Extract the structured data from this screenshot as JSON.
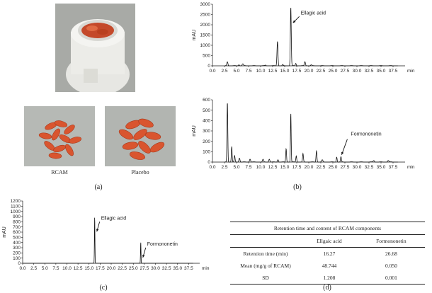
{
  "panels": {
    "a_label": "(a)",
    "b_label": "(b)",
    "c_label": "(c)",
    "d_label": "(d)"
  },
  "photos": {
    "rcam_caption": "RCAM",
    "placebo_caption": "Placebo"
  },
  "colors": {
    "line": "#111111",
    "tablet": "#d9552f",
    "photo_bg": "#b5b8b4",
    "bottle": "#f2f2ee"
  },
  "table": {
    "title": "Retention time and content of RCAM components",
    "columns": [
      "",
      "Ellgaic acid",
      "Formononetin"
    ],
    "rows": [
      {
        "label": "Retention time (min)",
        "ellagic": "16.27",
        "formononetin": "26.68"
      },
      {
        "label": "Mean (mg/g of RCAM)",
        "ellagic": "48.744",
        "formononetin": "0.050"
      },
      {
        "label": "SD",
        "ellagic": "1.208",
        "formononetin": "0.001"
      }
    ]
  },
  "chart_data": [
    {
      "id": "b_top",
      "type": "line",
      "title": "",
      "xlabel": "min",
      "ylabel": "mAU",
      "xlim": [
        0,
        40
      ],
      "ylim": [
        0,
        3000
      ],
      "xticks": [
        "0.0",
        "2.5",
        "5.0",
        "7.5",
        "10.0",
        "12.5",
        "15.0",
        "17.5",
        "20.0",
        "22.5",
        "25.0",
        "27.5",
        "30.0",
        "32.5",
        "35.0",
        "37.5"
      ],
      "yticks": [
        "0",
        "500",
        "1000",
        "1500",
        "2000",
        "2500",
        "3000"
      ],
      "peaks": [
        {
          "x": 3.1,
          "y": 200,
          "w": 0.25
        },
        {
          "x": 5.5,
          "y": 60,
          "w": 0.3
        },
        {
          "x": 6.3,
          "y": 90,
          "w": 0.3
        },
        {
          "x": 11.0,
          "y": 30,
          "w": 0.3
        },
        {
          "x": 13.5,
          "y": 1200,
          "w": 0.22
        },
        {
          "x": 14.6,
          "y": 60,
          "w": 0.2
        },
        {
          "x": 16.27,
          "y": 2850,
          "w": 0.2
        },
        {
          "x": 17.3,
          "y": 120,
          "w": 0.2
        },
        {
          "x": 19.2,
          "y": 200,
          "w": 0.25
        },
        {
          "x": 20.5,
          "y": 40,
          "w": 0.3
        }
      ],
      "annotations": [
        {
          "text": "Ellagic acid",
          "x": 16.27,
          "y": 2850
        }
      ]
    },
    {
      "id": "b_bottom",
      "type": "line",
      "title": "",
      "xlabel": "min",
      "ylabel": "mAU",
      "xlim": [
        0,
        40
      ],
      "ylim": [
        0,
        600
      ],
      "xticks": [
        "0.0",
        "2.5",
        "5.0",
        "7.5",
        "10.0",
        "12.5",
        "15.0",
        "17.5",
        "20.0",
        "22.5",
        "25.0",
        "27.5",
        "30.0",
        "32.5",
        "35.0",
        "37.5"
      ],
      "yticks": [
        "0",
        "100",
        "200",
        "300",
        "400",
        "500",
        "600"
      ],
      "peaks": [
        {
          "x": 3.1,
          "y": 580,
          "w": 0.18
        },
        {
          "x": 4.0,
          "y": 150,
          "w": 0.18
        },
        {
          "x": 4.6,
          "y": 60,
          "w": 0.2
        },
        {
          "x": 5.6,
          "y": 40,
          "w": 0.25
        },
        {
          "x": 7.8,
          "y": 30,
          "w": 0.25
        },
        {
          "x": 10.5,
          "y": 25,
          "w": 0.25
        },
        {
          "x": 11.8,
          "y": 30,
          "w": 0.25
        },
        {
          "x": 13.6,
          "y": 25,
          "w": 0.25
        },
        {
          "x": 15.3,
          "y": 130,
          "w": 0.18
        },
        {
          "x": 16.27,
          "y": 470,
          "w": 0.16
        },
        {
          "x": 17.4,
          "y": 60,
          "w": 0.2
        },
        {
          "x": 18.8,
          "y": 80,
          "w": 0.2
        },
        {
          "x": 21.6,
          "y": 110,
          "w": 0.2
        },
        {
          "x": 22.8,
          "y": 20,
          "w": 0.3
        },
        {
          "x": 25.8,
          "y": 50,
          "w": 0.2
        },
        {
          "x": 26.68,
          "y": 50,
          "w": 0.2
        },
        {
          "x": 33.5,
          "y": 15,
          "w": 0.3
        },
        {
          "x": 36.5,
          "y": 15,
          "w": 0.3
        }
      ],
      "annotations": [
        {
          "text": "Formononetin",
          "x": 26.68,
          "y": 50
        }
      ]
    },
    {
      "id": "c",
      "type": "line",
      "title": "",
      "xlabel": "min",
      "ylabel": "mAU",
      "xlim": [
        0,
        40
      ],
      "ylim": [
        0,
        1200
      ],
      "xticks": [
        "0.0",
        "2.5",
        "5.0",
        "7.5",
        "10.0",
        "12.5",
        "15.0",
        "17.5",
        "20.0",
        "22.5",
        "25.0",
        "27.5",
        "30.0",
        "32.5",
        "35.0",
        "37.5"
      ],
      "yticks": [
        "0",
        "100",
        "200",
        "300",
        "400",
        "500",
        "600",
        "700",
        "800",
        "900",
        "1000",
        "1100",
        "1200"
      ],
      "peaks": [
        {
          "x": 16.27,
          "y": 910,
          "w": 0.12
        },
        {
          "x": 26.68,
          "y": 410,
          "w": 0.12
        }
      ],
      "annotations": [
        {
          "text": "Ellagic acid",
          "x": 16.27,
          "y": 910
        },
        {
          "text": "Formononetin",
          "x": 26.68,
          "y": 410
        }
      ]
    }
  ]
}
